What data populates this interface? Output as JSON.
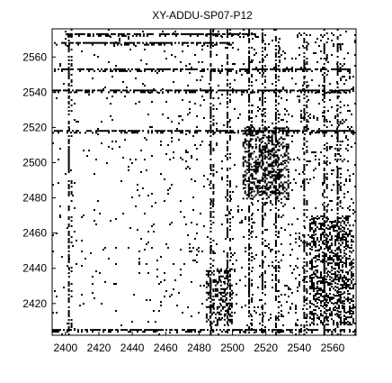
{
  "chart_data": {
    "type": "heatmap",
    "title": "XY-ADDU-SP07-P12",
    "xlabel": "",
    "ylabel": "",
    "xlim": [
      2392,
      2574
    ],
    "ylim": [
      2402,
      2576
    ],
    "x_ticks": [
      2400,
      2420,
      2440,
      2460,
      2480,
      2500,
      2520,
      2540,
      2560
    ],
    "y_ticks": [
      2420,
      2440,
      2460,
      2480,
      2500,
      2520,
      2540,
      2560
    ],
    "grid": false,
    "legend": "none",
    "colors": {
      "marks": "#000000",
      "background": "#ffffff",
      "frame": "#000000"
    },
    "description_of_marks": "binary scatter of black cells on white",
    "dense_row_bands": [
      {
        "y": 2573,
        "x_from": 2400,
        "x_to": 2514
      },
      {
        "y": 2568,
        "x_from": 2392,
        "x_to": 2500
      },
      {
        "y": 2553,
        "x_from": 2392,
        "x_to": 2570
      },
      {
        "y": 2541,
        "x_from": 2392,
        "x_to": 2570
      },
      {
        "y": 2518,
        "x_from": 2392,
        "x_to": 2574
      },
      {
        "y": 2405,
        "x_from": 2392,
        "x_to": 2574
      }
    ],
    "dense_column_bands": [
      {
        "x": 2402,
        "y_from": 2402,
        "y_to": 2576
      },
      {
        "x": 2487,
        "y_from": 2402,
        "y_to": 2576
      },
      {
        "x": 2497,
        "y_from": 2402,
        "y_to": 2576
      },
      {
        "x": 2510,
        "y_from": 2402,
        "y_to": 2576
      },
      {
        "x": 2518,
        "y_from": 2402,
        "y_to": 2576
      },
      {
        "x": 2526,
        "y_from": 2402,
        "y_to": 2576
      },
      {
        "x": 2543,
        "y_from": 2402,
        "y_to": 2576
      },
      {
        "x": 2555,
        "y_from": 2402,
        "y_to": 2576
      },
      {
        "x": 2563,
        "y_from": 2402,
        "y_to": 2576
      }
    ],
    "dense_blocks": [
      {
        "x_from": 2484,
        "x_to": 2500,
        "y_from": 2408,
        "y_to": 2440
      },
      {
        "x_from": 2506,
        "x_to": 2534,
        "y_from": 2480,
        "y_to": 2520
      },
      {
        "x_from": 2546,
        "x_to": 2572,
        "y_from": 2408,
        "y_to": 2470
      }
    ]
  }
}
